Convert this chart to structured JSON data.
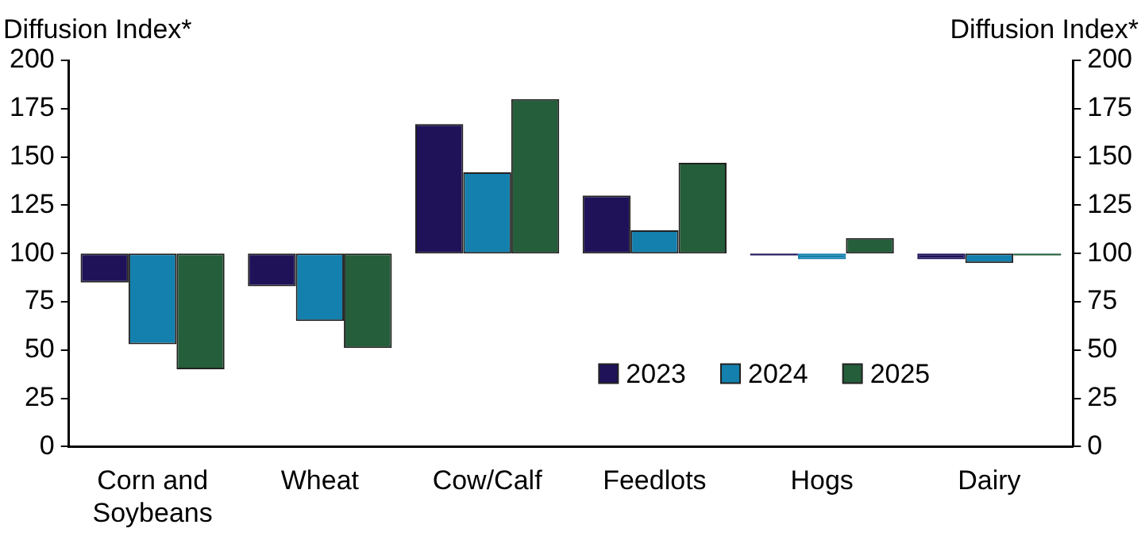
{
  "chart_data": {
    "type": "bar",
    "ylabel": "Diffusion Index*",
    "y2label": "Diffusion Index*",
    "categories": [
      "Corn and Soybeans",
      "Wheat",
      "Cow/Calf",
      "Feedlots",
      "Hogs",
      "Dairy"
    ],
    "series": [
      {
        "name": "2023",
        "color": "#1f1259",
        "base": [
          100,
          100,
          100,
          100,
          100,
          100
        ],
        "values": [
          -15,
          -17,
          67,
          30,
          -1,
          -3
        ]
      },
      {
        "name": "2024",
        "color": "#1480ae",
        "base": [
          100,
          100,
          100,
          100,
          100,
          100
        ],
        "values": [
          -47,
          -35,
          42,
          12,
          -3,
          -5
        ]
      },
      {
        "name": "2025",
        "color": "#245e3a",
        "base": [
          100,
          100,
          100,
          100,
          100,
          100
        ],
        "values": [
          -60,
          -49,
          80,
          47,
          8,
          -1
        ]
      }
    ],
    "ylim": [
      0,
      200
    ],
    "yticks": [
      0,
      25,
      50,
      75,
      100,
      125,
      150,
      175,
      200
    ],
    "y2lim": [
      0,
      200
    ],
    "y2ticks": [
      0,
      25,
      50,
      75,
      100,
      125,
      150,
      175,
      200
    ],
    "legend": "bottom right"
  }
}
